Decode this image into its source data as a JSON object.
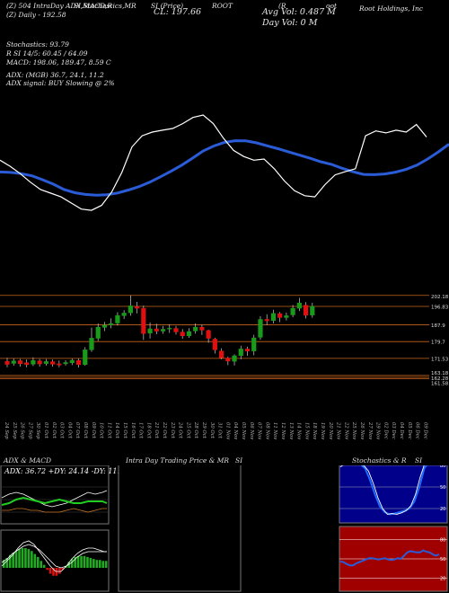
{
  "header": {
    "line1": [
      "(Z) 504 IntraDay ADX,MACD,R",
      "SI,Stochastics,MR",
      "SI (Price)",
      "ROOT",
      "(R",
      "oot",
      "Root Holdings, Inc"
    ],
    "cl_label": "CL: 197.66",
    "avg_vol": "Avg Vol: 0.487 M",
    "day_vol": "Day Vol: 0  M",
    "line2": "(Z) Daily  -  192.58",
    "stoch": "Stochastics: 93.79",
    "rsi": "R           SI 14/5: 60.45 / 64.09",
    "macd": "MACD: 198.06, 189.47, 8.59 C",
    "adx": "ADX:                   (MGB) 36.7, 24.1, 11.2",
    "adx_signal": "ADX  signal:                      BUY Slowing @ 2%"
  },
  "colors": {
    "up": "#1a9a1a",
    "down": "#e01010",
    "ma": "#2a5cd8",
    "price": "#ffffff",
    "level": "#c8641e"
  },
  "price_labels": [
    "202.18",
    "196.83",
    "187.9",
    "179.7",
    "171.53",
    "163.18",
    "162.28",
    "161.58"
  ],
  "date_labels": [
    "24 Sep",
    "25 Sep",
    "26 Sep",
    "27 Sep",
    "30 Sep",
    "01 Oct",
    "02 Oct",
    "03 Oct",
    "04 Oct",
    "07 Oct",
    "08 Oct",
    "09 Oct",
    "10 Oct",
    "11 Oct",
    "14 Oct",
    "15 Oct",
    "16 Oct",
    "17 Oct",
    "18 Oct",
    "21 Oct",
    "22 Oct",
    "23 Oct",
    "24 Oct",
    "25 Oct",
    "28 Oct",
    "29 Oct",
    "30 Oct",
    "31 Oct",
    "01 Nov",
    "04 Nov",
    "05 Nov",
    "06 Nov",
    "07 Nov",
    "08 Nov",
    "11 Nov",
    "12 Nov",
    "13 Nov",
    "14 Nov",
    "15 Nov",
    "18 Nov",
    "19 Nov",
    "20 Nov",
    "21 Nov",
    "22 Nov",
    "25 Nov",
    "26 Nov",
    "27 Nov",
    "29 Nov",
    "02 Dec",
    "03 Dec",
    "04 Dec",
    "05 Dec",
    "06 Dec",
    "09 Dec"
  ],
  "panels": {
    "adx_title": "ADX  & MACD",
    "adx_vals": "ADX: 36.72  +DY: 24.14  -DY: 11.17",
    "intra_title": "Intra Day Trading Price  & MR",
    "intra_si": "SI",
    "stoch_title": "Stochastics & R",
    "stoch_si": "SI",
    "stoch_ticks": [
      "80",
      "50",
      "20"
    ],
    "rsi_ticks": [
      "80",
      "50",
      "20"
    ],
    "adx_ticks": [
      "25",
      "50",
      "75"
    ]
  },
  "chart_data": {
    "type": "candlestick",
    "ticker": "ROOT",
    "price_levels": [
      202.18,
      196.83,
      187.9,
      179.7,
      171.53,
      163.18,
      162.28,
      161.58
    ],
    "candles": [
      {
        "o": 170.2,
        "c": 168.5,
        "h": 171.8,
        "l": 167.2
      },
      {
        "o": 169.0,
        "c": 170.4,
        "h": 171.5,
        "l": 168.0
      },
      {
        "o": 170.5,
        "c": 168.8,
        "h": 171.2,
        "l": 167.5
      },
      {
        "o": 169.5,
        "c": 168.4,
        "h": 171.0,
        "l": 167.2
      },
      {
        "o": 168.6,
        "c": 170.6,
        "h": 172.0,
        "l": 167.8
      },
      {
        "o": 170.4,
        "c": 168.7,
        "h": 171.2,
        "l": 167.5
      },
      {
        "o": 168.9,
        "c": 170.1,
        "h": 171.2,
        "l": 168.0
      },
      {
        "o": 170.0,
        "c": 168.6,
        "h": 171.0,
        "l": 167.5
      },
      {
        "o": 169.0,
        "c": 168.2,
        "h": 170.5,
        "l": 167.2
      },
      {
        "o": 168.8,
        "c": 169.6,
        "h": 170.6,
        "l": 168.0
      },
      {
        "o": 169.3,
        "c": 170.7,
        "h": 171.4,
        "l": 168.3
      },
      {
        "o": 170.6,
        "c": 168.4,
        "h": 171.4,
        "l": 167.1
      },
      {
        "o": 168.4,
        "c": 175.8,
        "h": 177.0,
        "l": 168.0
      },
      {
        "o": 175.6,
        "c": 181.5,
        "h": 186.5,
        "l": 174.7
      },
      {
        "o": 181.2,
        "c": 186.8,
        "h": 188.5,
        "l": 180.0
      },
      {
        "o": 186.5,
        "c": 187.8,
        "h": 189.3,
        "l": 184.8
      },
      {
        "o": 187.7,
        "c": 188.6,
        "h": 191.0,
        "l": 186.2
      },
      {
        "o": 188.6,
        "c": 192.5,
        "h": 194.0,
        "l": 187.5
      },
      {
        "o": 192.2,
        "c": 193.7,
        "h": 195.0,
        "l": 190.7
      },
      {
        "o": 193.6,
        "c": 197.2,
        "h": 202.2,
        "l": 192.3
      },
      {
        "o": 196.8,
        "c": 195.8,
        "h": 199.0,
        "l": 193.4
      },
      {
        "o": 196.0,
        "c": 183.5,
        "h": 197.2,
        "l": 180.5
      },
      {
        "o": 183.7,
        "c": 186.0,
        "h": 189.0,
        "l": 181.2
      },
      {
        "o": 186.0,
        "c": 184.7,
        "h": 188.4,
        "l": 183.3
      },
      {
        "o": 184.7,
        "c": 185.8,
        "h": 187.3,
        "l": 183.5
      },
      {
        "o": 185.7,
        "c": 186.3,
        "h": 188.1,
        "l": 183.9
      },
      {
        "o": 186.2,
        "c": 184.3,
        "h": 187.4,
        "l": 183.1
      },
      {
        "o": 184.4,
        "c": 182.4,
        "h": 185.8,
        "l": 181.1
      },
      {
        "o": 182.4,
        "c": 184.7,
        "h": 186.2,
        "l": 181.5
      },
      {
        "o": 184.8,
        "c": 186.8,
        "h": 188.5,
        "l": 183.6
      },
      {
        "o": 186.8,
        "c": 185.2,
        "h": 187.9,
        "l": 182.9
      },
      {
        "o": 185.2,
        "c": 181.2,
        "h": 185.5,
        "l": 179.1
      },
      {
        "o": 181.0,
        "c": 175.6,
        "h": 181.6,
        "l": 173.9
      },
      {
        "o": 175.2,
        "c": 171.7,
        "h": 176.4,
        "l": 171.1
      },
      {
        "o": 171.8,
        "c": 170.1,
        "h": 172.4,
        "l": 168.2
      },
      {
        "o": 170.0,
        "c": 172.9,
        "h": 173.5,
        "l": 168.1
      },
      {
        "o": 172.8,
        "c": 176.2,
        "h": 177.7,
        "l": 171.1
      },
      {
        "o": 176.2,
        "c": 175.0,
        "h": 177.2,
        "l": 172.7
      },
      {
        "o": 175.0,
        "c": 181.6,
        "h": 183.0,
        "l": 173.0
      },
      {
        "o": 181.7,
        "c": 190.6,
        "h": 192.1,
        "l": 180.6
      },
      {
        "o": 190.6,
        "c": 189.7,
        "h": 193.0,
        "l": 187.7
      },
      {
        "o": 189.8,
        "c": 193.5,
        "h": 195.2,
        "l": 188.5
      },
      {
        "o": 193.4,
        "c": 191.3,
        "h": 194.1,
        "l": 189.2
      },
      {
        "o": 191.3,
        "c": 192.4,
        "h": 193.8,
        "l": 190.0
      },
      {
        "o": 192.6,
        "c": 196.0,
        "h": 197.5,
        "l": 191.6
      },
      {
        "o": 195.8,
        "c": 198.6,
        "h": 201.0,
        "l": 194.6
      },
      {
        "o": 197.5,
        "c": 192.4,
        "h": 198.9,
        "l": 191.0
      },
      {
        "o": 192.5,
        "c": 197.0,
        "h": 198.6,
        "l": 191.3
      }
    ],
    "price_line": [
      181,
      178.5,
      175.5,
      172,
      169,
      167.5,
      166,
      163.5,
      161,
      160.5,
      162.5,
      168,
      176,
      186.5,
      191,
      192.5,
      193.3,
      194,
      196,
      198.5,
      199.5,
      196,
      190,
      185,
      182.5,
      181,
      181.5,
      177.5,
      172.5,
      168.5,
      166.5,
      166,
      171,
      175,
      176.3,
      177.5,
      191,
      193,
      192.2,
      193.3,
      192.5,
      195.6,
      190.5
    ],
    "ma_line": [
      176.2,
      176,
      175.5,
      174.6,
      173,
      171.2,
      169,
      167.7,
      167,
      166.7,
      166.9,
      167.6,
      168.8,
      170.2,
      172,
      174.2,
      176.5,
      179,
      181.8,
      184.8,
      186.8,
      188.3,
      189,
      188.9,
      188.1,
      186.9,
      185.7,
      184.4,
      183.1,
      181.8,
      180.4,
      179.3,
      177.7,
      176.3,
      175.2,
      175.1,
      175.4,
      176.1,
      177.3,
      179,
      181.5,
      184.4,
      187.6
    ],
    "stoch_k": [
      85,
      84,
      83,
      84,
      82,
      76,
      60,
      40,
      23,
      15,
      12,
      13,
      15,
      17,
      20,
      30,
      50,
      76,
      85,
      87,
      86
    ],
    "stoch_d": [
      78,
      82,
      84,
      84,
      81,
      80,
      72,
      55,
      35,
      20,
      12,
      13,
      12,
      14,
      17,
      24,
      40,
      64,
      84,
      90,
      91,
      90
    ],
    "rsi": [
      46,
      45,
      42,
      40,
      40,
      43,
      45,
      47,
      49,
      51,
      51,
      50,
      49,
      50,
      51,
      49,
      48,
      49,
      51,
      50,
      55,
      60,
      62,
      61,
      60,
      60,
      63,
      61,
      60,
      57,
      55,
      57
    ]
  }
}
